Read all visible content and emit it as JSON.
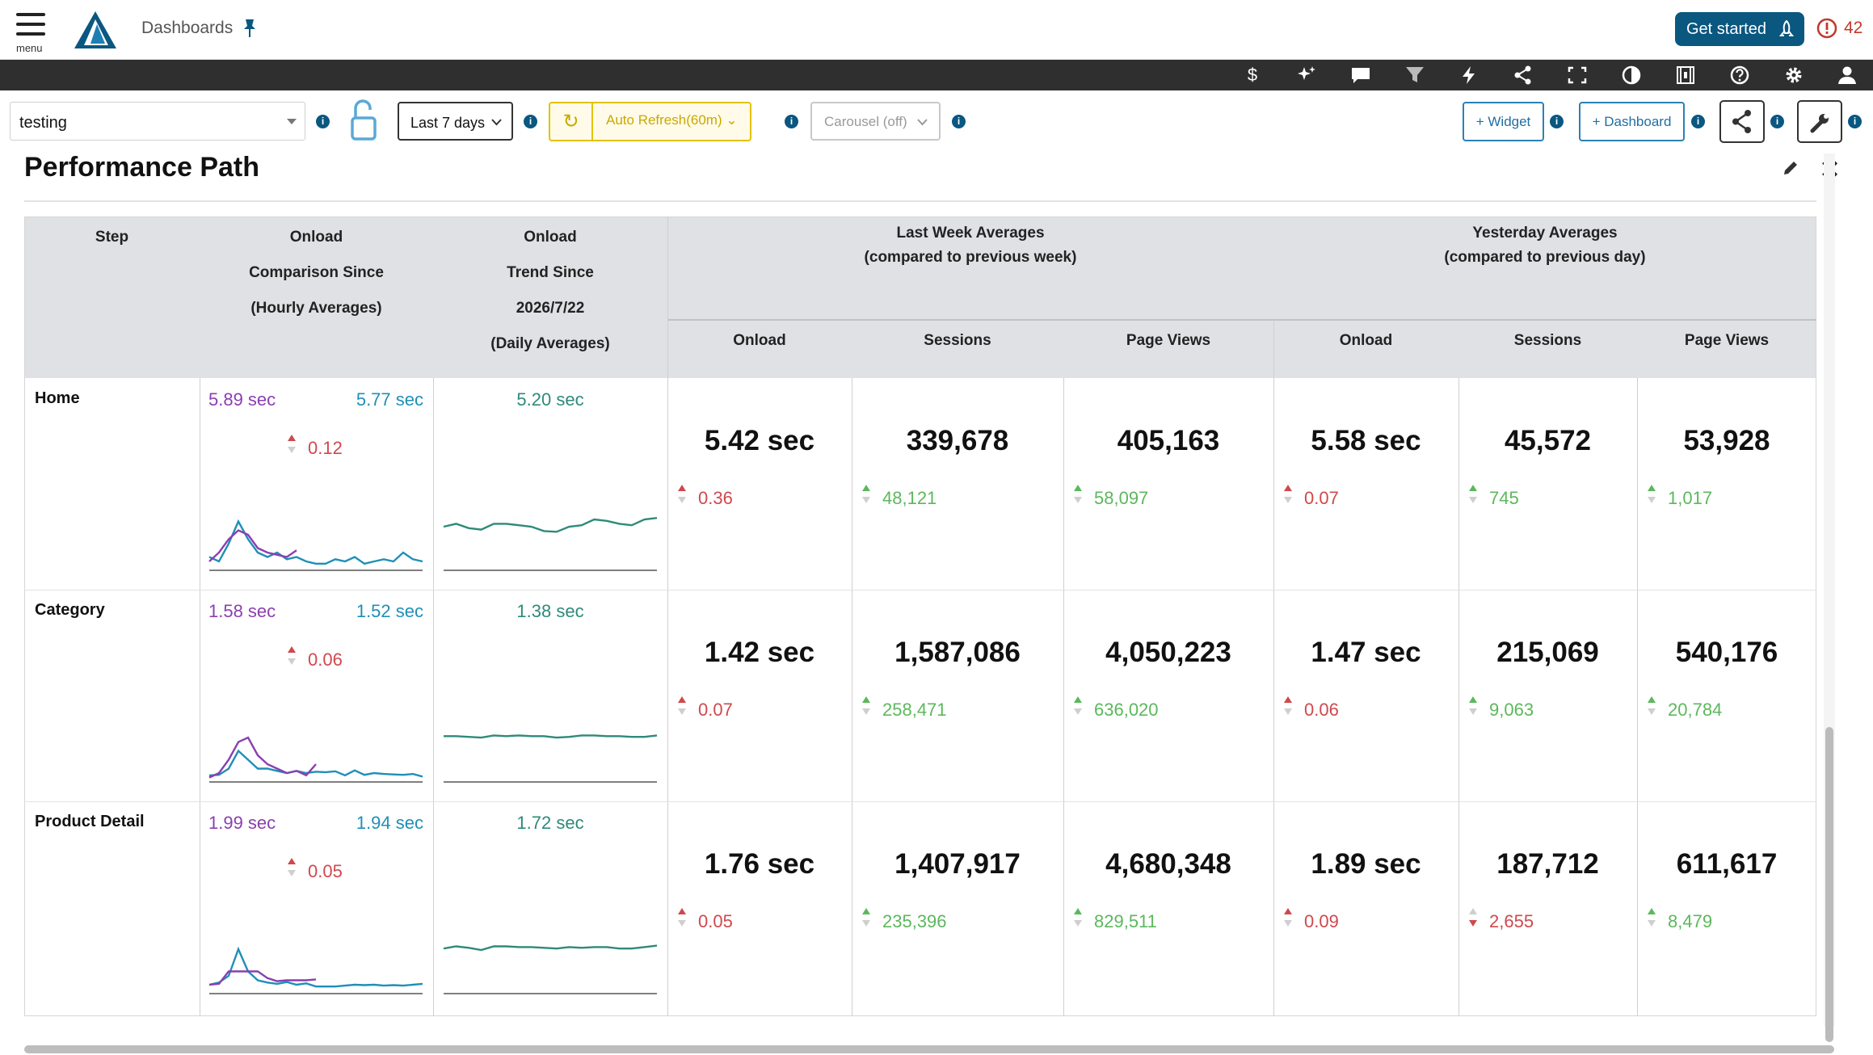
{
  "header": {
    "menu_label": "menu",
    "dashboard_title": "Dashboards",
    "get_started": "Get started",
    "alert_count": "42"
  },
  "toolbar_icons": [
    "dollar-icon",
    "sparkle-icon",
    "comment-icon",
    "filter-icon",
    "bolt-icon",
    "share-icon",
    "fullscreen-icon",
    "contrast-icon",
    "film-icon",
    "help-icon",
    "gear-icon",
    "user-icon"
  ],
  "filters": {
    "dashboard_select": "testing",
    "date_range": "Last 7 days",
    "auto_refresh": "Auto Refresh(60m)",
    "carousel": "Carousel (off)",
    "add_widget": "+ Widget",
    "add_dashboard": "+ Dashboard"
  },
  "widget": {
    "title": "Performance Path"
  },
  "table": {
    "headers": {
      "step": "Step",
      "onload_comp": [
        "Onload",
        "Comparison Since",
        "(Hourly Averages)"
      ],
      "onload_trend": [
        "Onload",
        "Trend Since",
        "2026/7/22",
        "(Daily Averages)"
      ],
      "last_week": [
        "Last Week Averages",
        "(compared to previous week)"
      ],
      "yesterday": [
        "Yesterday Averages",
        "(compared to previous day)"
      ],
      "sub": [
        "Onload",
        "Sessions",
        "Page Views",
        "Onload",
        "Sessions",
        "Page Views"
      ]
    },
    "rows": [
      {
        "step": "Home",
        "comp_a": "5.89 sec",
        "comp_b": "5.77 sec",
        "comp_delta": "0.12",
        "trend": "5.20 sec",
        "values": [
          "5.42 sec",
          "339,678",
          "405,163",
          "5.58 sec",
          "45,572",
          "53,928"
        ],
        "deltas": [
          "0.36",
          "48,121",
          "58,097",
          "0.07",
          "745",
          "1,017"
        ],
        "dir": [
          "up-red",
          "up-green",
          "up-green",
          "up-red",
          "up-green",
          "up-green"
        ],
        "spark_purple": [
          2,
          4,
          7,
          9,
          8,
          5,
          4,
          3.5,
          3,
          4.5
        ],
        "spark_teal": [
          3,
          2,
          6,
          11,
          7,
          4,
          3,
          4,
          2.5,
          3,
          2,
          1.5,
          1.5,
          2.5,
          2,
          3,
          1.5,
          2,
          2.5,
          2,
          4,
          2.5,
          2
        ],
        "spark_trend": [
          6,
          6.4,
          5.8,
          5.6,
          6.4,
          6.4,
          6.2,
          6,
          5.4,
          5.3,
          6,
          6.2,
          7,
          6.8,
          6.4,
          6.2,
          7,
          7.2
        ]
      },
      {
        "step": "Category",
        "comp_a": "1.58 sec",
        "comp_b": "1.52 sec",
        "comp_delta": "0.06",
        "trend": "1.38 sec",
        "values": [
          "1.42 sec",
          "1,587,086",
          "4,050,223",
          "1.47 sec",
          "215,069",
          "540,176"
        ],
        "deltas": [
          "0.07",
          "258,471",
          "636,020",
          "0.06",
          "9,063",
          "20,784"
        ],
        "dir": [
          "up-red",
          "up-green",
          "up-green",
          "up-red",
          "up-green",
          "up-green"
        ],
        "spark_purple": [
          1,
          2,
          5,
          9,
          10,
          6,
          4,
          3,
          2,
          2.5,
          1.5,
          4
        ],
        "spark_teal": [
          1.5,
          1.6,
          3,
          7,
          5,
          3,
          3,
          2.5,
          2,
          2.5,
          2,
          2.3,
          2.2,
          2.4,
          1.5,
          2.6,
          1.6,
          2,
          1.8,
          1.7,
          1.6,
          1.8,
          1.2
        ],
        "spark_trend": [
          6.3,
          6.3,
          6.2,
          6.1,
          6.4,
          6.3,
          6.4,
          6.3,
          6.3,
          6.1,
          6.2,
          6.4,
          6.4,
          6.3,
          6.3,
          6.2,
          6.2,
          6.4
        ]
      },
      {
        "step": "Product Detail",
        "comp_a": "1.99 sec",
        "comp_b": "1.94 sec",
        "comp_delta": "0.05",
        "trend": "1.72 sec",
        "values": [
          "1.76 sec",
          "1,407,917",
          "4,680,348",
          "1.89 sec",
          "187,712",
          "611,617"
        ],
        "deltas": [
          "0.05",
          "235,396",
          "829,511",
          "0.09",
          "2,655",
          "8,479"
        ],
        "dir": [
          "up-red",
          "up-green",
          "up-green",
          "up-red",
          "down-red",
          "up-green"
        ],
        "spark_purple": [
          2,
          2.2,
          5,
          5,
          5,
          5,
          3.5,
          2.8,
          3,
          3,
          3,
          3.2
        ],
        "spark_teal": [
          2,
          2.5,
          4,
          10,
          5,
          3,
          2.5,
          2.2,
          2.6,
          2,
          2.3,
          1.6,
          1.6,
          1.6,
          1.8,
          2,
          1.9,
          2,
          1.8,
          1.9,
          1.8,
          2,
          2.2
        ],
        "spark_trend": [
          6.2,
          6.5,
          6.3,
          6,
          6.5,
          6.5,
          6.4,
          6.4,
          6.3,
          6.2,
          6.4,
          6.3,
          6.4,
          6.4,
          6.2,
          6.2,
          6.4,
          6.6
        ]
      }
    ]
  }
}
